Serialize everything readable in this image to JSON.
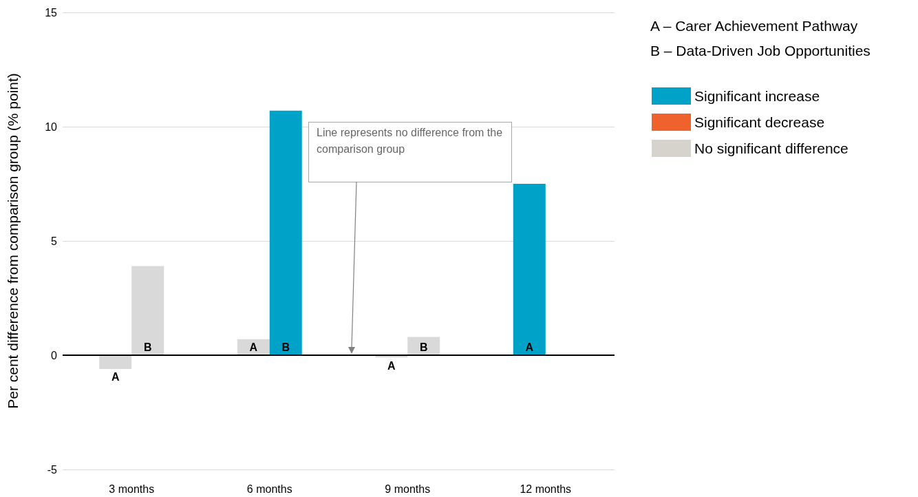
{
  "chart_data": {
    "type": "bar",
    "ylabel": "Per cent difference from comparison group (% point)",
    "categories": [
      "3 months",
      "6 months",
      "9 months",
      "12 months"
    ],
    "series": [
      {
        "values": [
          -0.6,
          0.7,
          -0.1,
          7.5
        ],
        "colors": [
          "#d9d9d9",
          "#d9d9d9",
          "#d9d9d9",
          "#00a2c7"
        ],
        "value_labels": [
          "A",
          "A",
          "A",
          "A"
        ]
      },
      {
        "values": [
          3.9,
          10.7,
          0.8,
          null
        ],
        "colors": [
          "#d9d9d9",
          "#00a2c7",
          "#d9d9d9",
          null
        ],
        "value_labels": [
          "B",
          "B",
          "B",
          null
        ]
      },
      {
        "name": "Significant increase",
        "color": "#00a2c7",
        "values": [
          null,
          null,
          null,
          null
        ]
      },
      {
        "name": "Significant decrease",
        "color": "#f0622d",
        "values": [
          null,
          null,
          null,
          null
        ]
      },
      {
        "name": "No significant difference",
        "color": "#d6d2cc",
        "values": [
          null,
          null,
          null,
          null
        ]
      }
    ],
    "ylim": [
      -5,
      15
    ],
    "yticks": [
      -5,
      0,
      5,
      10,
      15
    ],
    "grid": "y",
    "legend": "top right",
    "ref_lines": [
      {
        "axis": "y",
        "value": 0,
        "color": "#000000"
      }
    ],
    "annotations": [
      "A – Carer Achievement Pathway",
      "B – Data-Driven Job Opportunities",
      "Line represents no difference from the comparison group"
    ]
  }
}
